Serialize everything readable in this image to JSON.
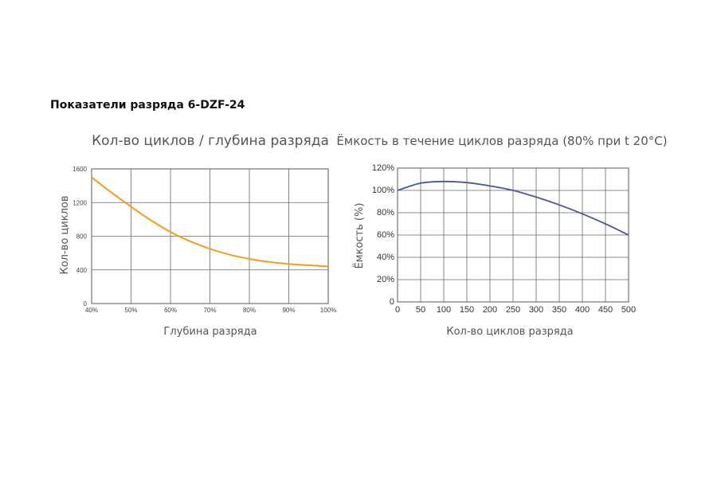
{
  "page": {
    "title": "Показатели разряда 6-DZF-24"
  },
  "chart_data": [
    {
      "type": "line",
      "title": "Кол-во циклов / глубина разряда",
      "xlabel": "Глубина разряда",
      "ylabel": "Кол-во циклов",
      "xlim": [
        40,
        100
      ],
      "ylim": [
        0,
        1600
      ],
      "x_ticks": [
        "40%",
        "50%",
        "60%",
        "70%",
        "80%",
        "90%",
        "100%"
      ],
      "y_ticks": [
        "0",
        "400",
        "800",
        "1200",
        "1600"
      ],
      "grid": true,
      "line_color": "#f39c1f",
      "series": [
        {
          "x": [
            40,
            45,
            50,
            55,
            60,
            65,
            70,
            75,
            80,
            85,
            90,
            95,
            100
          ],
          "y": [
            1500,
            1320,
            1150,
            990,
            850,
            740,
            650,
            580,
            530,
            495,
            470,
            455,
            440
          ]
        }
      ]
    },
    {
      "type": "line",
      "title": "Ёмкость в течение циклов разряда (80% при t 20°C)",
      "xlabel": "Кол-во циклов разряда",
      "ylabel": "Ёмкость (%)",
      "xlim": [
        0,
        500
      ],
      "ylim": [
        0,
        120
      ],
      "x_ticks": [
        "0",
        "50",
        "100",
        "150",
        "200",
        "250",
        "300",
        "350",
        "400",
        "450",
        "500"
      ],
      "y_ticks": [
        "0",
        "20%",
        "40%",
        "60%",
        "80%",
        "100%",
        "120%"
      ],
      "grid": true,
      "line_color": "#4b55a0",
      "series": [
        {
          "x": [
            0,
            50,
            100,
            150,
            200,
            250,
            300,
            350,
            400,
            450,
            500
          ],
          "y": [
            100,
            106.5,
            108,
            107,
            104,
            100,
            94,
            87,
            79,
            70,
            60
          ]
        }
      ]
    }
  ]
}
